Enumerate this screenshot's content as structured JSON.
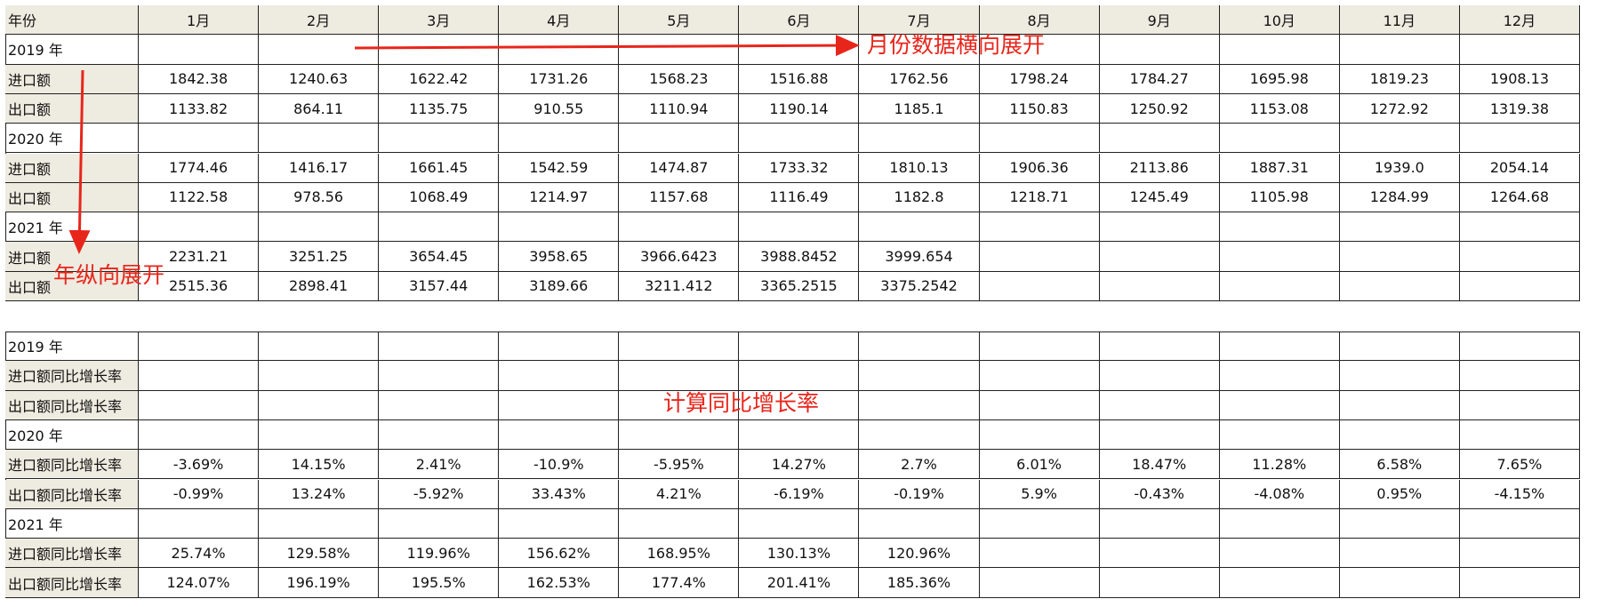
{
  "table1": {
    "header": [
      "年份",
      "1月",
      "2月",
      "3月",
      "4月",
      "5月",
      "6月",
      "7月",
      "8月",
      "9月",
      "10月",
      "11月",
      "12月"
    ],
    "rows": [
      {
        "label": "2019 年"
      },
      {
        "label": "进口额",
        "values": [
          "1842.38",
          "1240.63",
          "1622.42",
          "1731.26",
          "1568.23",
          "1516.88",
          "1762.56",
          "1798.24",
          "1784.27",
          "1695.98",
          "1819.23",
          "1908.13"
        ]
      },
      {
        "label": "出口额",
        "values": [
          "1133.82",
          "864.11",
          "1135.75",
          "910.55",
          "1110.94",
          "1190.14",
          "1185.1",
          "1150.83",
          "1250.92",
          "1153.08",
          "1272.92",
          "1319.38"
        ]
      },
      {
        "label": "2020 年"
      },
      {
        "label": "进口额",
        "values": [
          "1774.46",
          "1416.17",
          "1661.45",
          "1542.59",
          "1474.87",
          "1733.32",
          "1810.13",
          "1906.36",
          "2113.86",
          "1887.31",
          "1939.0",
          "2054.14"
        ]
      },
      {
        "label": "出口额",
        "values": [
          "1122.58",
          "978.56",
          "1068.49",
          "1214.97",
          "1157.68",
          "1116.49",
          "1182.8",
          "1218.71",
          "1245.49",
          "1105.98",
          "1284.99",
          "1264.68"
        ]
      },
      {
        "label": "2021 年"
      },
      {
        "label": "进口额",
        "values": [
          "2231.21",
          "3251.25",
          "3654.45",
          "3958.65",
          "3966.6423",
          "3988.8452",
          "3999.654"
        ]
      },
      {
        "label": "出口额",
        "values": [
          "2515.36",
          "2898.41",
          "3157.44",
          "3189.66",
          "3211.412",
          "3365.2515",
          "3375.2542"
        ]
      }
    ]
  },
  "table2": {
    "rows": [
      {
        "label": "2019 年"
      },
      {
        "label": "进口额同比增长率"
      },
      {
        "label": "出口额同比增长率"
      },
      {
        "label": "2020 年"
      },
      {
        "label": "进口额同比增长率",
        "values": [
          "-3.69%",
          "14.15%",
          "2.41%",
          "-10.9%",
          "-5.95%",
          "14.27%",
          "2.7%",
          "6.01%",
          "18.47%",
          "11.28%",
          "6.58%",
          "7.65%"
        ]
      },
      {
        "label": "出口额同比增长率",
        "values": [
          "-0.99%",
          "13.24%",
          "-5.92%",
          "33.43%",
          "4.21%",
          "-6.19%",
          "-0.19%",
          "5.9%",
          "-0.43%",
          "-4.08%",
          "0.95%",
          "-4.15%"
        ]
      },
      {
        "label": "2021 年"
      },
      {
        "label": "进口额同比增长率",
        "values": [
          "25.74%",
          "129.58%",
          "119.96%",
          "156.62%",
          "168.95%",
          "130.13%",
          "120.96%"
        ]
      },
      {
        "label": "出口额同比增长率",
        "values": [
          "124.07%",
          "196.19%",
          "195.5%",
          "162.53%",
          "177.4%",
          "201.41%",
          "185.36%"
        ]
      }
    ]
  },
  "annotations": [
    "月份数据横向展开",
    "年纵向展开",
    "计算同比增长率"
  ]
}
